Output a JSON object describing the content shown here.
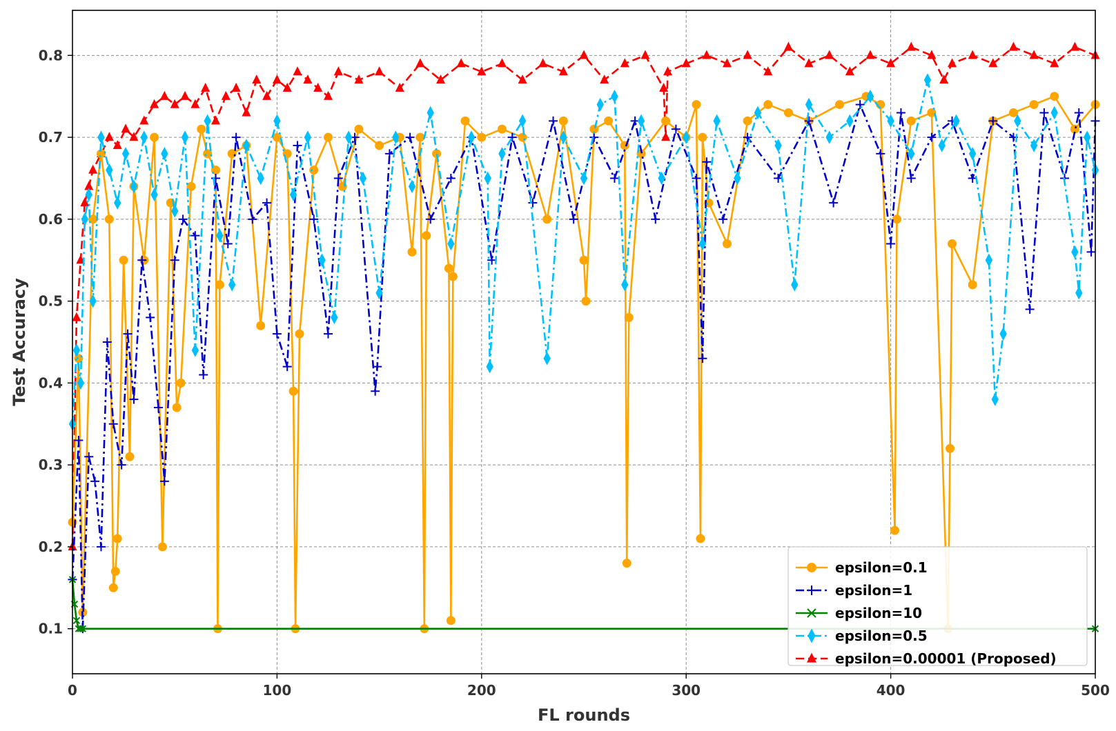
{
  "chart_data": {
    "type": "line",
    "title": "",
    "xlabel": "FL rounds",
    "ylabel": "Test Accuracy",
    "xlim": [
      0,
      500
    ],
    "ylim": [
      0.045,
      0.855
    ],
    "xticks": [
      0,
      100,
      200,
      300,
      400,
      500
    ],
    "yticks": [
      0.1,
      0.2,
      0.3,
      0.4,
      0.5,
      0.6,
      0.7,
      0.8
    ],
    "grid": true,
    "legend_position": "lower-right",
    "series": [
      {
        "name": "epsilon=0.1",
        "color": "#FFA500",
        "marker": "circle",
        "linestyle": "solid",
        "x": [
          0,
          3,
          5,
          10,
          14,
          18,
          20,
          21,
          22,
          25,
          28,
          30,
          35,
          40,
          44,
          48,
          51,
          53,
          58,
          63,
          66,
          70,
          71,
          72,
          78,
          85,
          92,
          100,
          105,
          108,
          109,
          111,
          118,
          125,
          132,
          140,
          150,
          160,
          166,
          170,
          172,
          173,
          178,
          184,
          185,
          186,
          192,
          200,
          210,
          220,
          232,
          240,
          250,
          251,
          255,
          262,
          270,
          271,
          272,
          278,
          290,
          300,
          305,
          307,
          308,
          311,
          320,
          330,
          340,
          350,
          360,
          375,
          388,
          395,
          402,
          403,
          410,
          420,
          428,
          429,
          430,
          440,
          450,
          460,
          470,
          480,
          490,
          500
        ],
        "y": [
          0.23,
          0.43,
          0.12,
          0.6,
          0.68,
          0.6,
          0.15,
          0.17,
          0.21,
          0.55,
          0.31,
          0.64,
          0.55,
          0.7,
          0.2,
          0.62,
          0.37,
          0.4,
          0.64,
          0.71,
          0.68,
          0.66,
          0.1,
          0.52,
          0.68,
          0.69,
          0.47,
          0.7,
          0.68,
          0.39,
          0.1,
          0.46,
          0.66,
          0.7,
          0.64,
          0.71,
          0.69,
          0.7,
          0.56,
          0.7,
          0.1,
          0.58,
          0.68,
          0.54,
          0.11,
          0.53,
          0.72,
          0.7,
          0.71,
          0.7,
          0.6,
          0.72,
          0.55,
          0.5,
          0.71,
          0.72,
          0.69,
          0.18,
          0.48,
          0.68,
          0.72,
          0.7,
          0.74,
          0.21,
          0.7,
          0.62,
          0.57,
          0.72,
          0.74,
          0.73,
          0.72,
          0.74,
          0.75,
          0.74,
          0.22,
          0.6,
          0.72,
          0.73,
          0.1,
          0.32,
          0.57,
          0.52,
          0.72,
          0.73,
          0.74,
          0.75,
          0.71,
          0.74
        ]
      },
      {
        "name": "epsilon=1",
        "color": "#0000CD",
        "marker": "plus",
        "linestyle": "dashdot",
        "x": [
          0,
          3,
          5,
          8,
          11,
          14,
          17,
          20,
          24,
          27,
          30,
          34,
          38,
          42,
          45,
          50,
          54,
          60,
          64,
          70,
          76,
          80,
          88,
          95,
          100,
          105,
          110,
          118,
          125,
          130,
          138,
          148,
          149,
          155,
          165,
          175,
          185,
          195,
          205,
          215,
          225,
          235,
          245,
          255,
          265,
          275,
          285,
          295,
          305,
          308,
          310,
          318,
          330,
          345,
          360,
          372,
          385,
          395,
          400,
          405,
          410,
          420,
          430,
          440,
          450,
          460,
          468,
          475,
          485,
          492,
          498,
          500
        ],
        "y": [
          0.16,
          0.33,
          0.1,
          0.31,
          0.28,
          0.2,
          0.45,
          0.35,
          0.3,
          0.46,
          0.38,
          0.55,
          0.48,
          0.37,
          0.28,
          0.55,
          0.6,
          0.58,
          0.41,
          0.65,
          0.57,
          0.7,
          0.6,
          0.62,
          0.46,
          0.42,
          0.69,
          0.6,
          0.46,
          0.65,
          0.7,
          0.39,
          0.42,
          0.68,
          0.7,
          0.6,
          0.65,
          0.7,
          0.55,
          0.7,
          0.62,
          0.72,
          0.6,
          0.7,
          0.65,
          0.72,
          0.6,
          0.71,
          0.65,
          0.43,
          0.67,
          0.6,
          0.7,
          0.65,
          0.72,
          0.62,
          0.74,
          0.68,
          0.57,
          0.73,
          0.65,
          0.7,
          0.72,
          0.65,
          0.72,
          0.7,
          0.49,
          0.73,
          0.65,
          0.73,
          0.56,
          0.72
        ]
      },
      {
        "name": "epsilon=10",
        "color": "#008000",
        "marker": "x",
        "linestyle": "solid",
        "x": [
          0,
          1,
          2,
          3,
          4,
          5,
          500
        ],
        "y": [
          0.16,
          0.13,
          0.11,
          0.1,
          0.1,
          0.1,
          0.1
        ]
      },
      {
        "name": "epsilon=0.5",
        "color": "#00BFFF",
        "marker": "diamond",
        "linestyle": "dashdot",
        "x": [
          0,
          2,
          4,
          6,
          8,
          10,
          14,
          18,
          22,
          26,
          30,
          35,
          40,
          45,
          50,
          55,
          60,
          66,
          72,
          78,
          85,
          92,
          100,
          108,
          115,
          122,
          128,
          135,
          142,
          150,
          158,
          166,
          175,
          185,
          195,
          203,
          204,
          210,
          220,
          232,
          240,
          250,
          258,
          265,
          270,
          278,
          288,
          300,
          308,
          315,
          325,
          335,
          345,
          353,
          360,
          370,
          380,
          390,
          400,
          410,
          418,
          425,
          432,
          440,
          448,
          451,
          455,
          462,
          470,
          480,
          490,
          492,
          496,
          500
        ],
        "y": [
          0.35,
          0.44,
          0.4,
          0.6,
          0.63,
          0.5,
          0.7,
          0.66,
          0.62,
          0.68,
          0.64,
          0.7,
          0.63,
          0.68,
          0.61,
          0.7,
          0.44,
          0.72,
          0.58,
          0.52,
          0.69,
          0.65,
          0.72,
          0.63,
          0.7,
          0.55,
          0.48,
          0.7,
          0.65,
          0.51,
          0.7,
          0.64,
          0.73,
          0.57,
          0.7,
          0.65,
          0.42,
          0.68,
          0.72,
          0.43,
          0.7,
          0.65,
          0.74,
          0.75,
          0.52,
          0.72,
          0.65,
          0.7,
          0.57,
          0.72,
          0.65,
          0.73,
          0.69,
          0.52,
          0.74,
          0.7,
          0.72,
          0.75,
          0.72,
          0.68,
          0.77,
          0.69,
          0.72,
          0.68,
          0.55,
          0.38,
          0.46,
          0.72,
          0.69,
          0.73,
          0.56,
          0.51,
          0.7,
          0.66
        ]
      },
      {
        "name": "epsilon=0.00001 (Proposed)",
        "color": "#FF0000",
        "marker": "triangle",
        "linestyle": "dashed",
        "x": [
          0,
          2,
          4,
          6,
          8,
          10,
          14,
          18,
          22,
          26,
          30,
          35,
          40,
          45,
          50,
          55,
          60,
          65,
          70,
          75,
          80,
          85,
          90,
          95,
          100,
          105,
          110,
          115,
          120,
          125,
          130,
          140,
          150,
          160,
          170,
          180,
          190,
          200,
          210,
          220,
          230,
          240,
          250,
          260,
          270,
          280,
          289,
          290,
          291,
          300,
          310,
          320,
          330,
          340,
          350,
          360,
          370,
          380,
          390,
          400,
          410,
          420,
          426,
          430,
          440,
          450,
          460,
          470,
          480,
          490,
          500
        ],
        "y": [
          0.2,
          0.48,
          0.55,
          0.62,
          0.64,
          0.66,
          0.68,
          0.7,
          0.69,
          0.71,
          0.7,
          0.72,
          0.74,
          0.75,
          0.74,
          0.75,
          0.74,
          0.76,
          0.72,
          0.75,
          0.76,
          0.73,
          0.77,
          0.75,
          0.77,
          0.76,
          0.78,
          0.77,
          0.76,
          0.75,
          0.78,
          0.77,
          0.78,
          0.76,
          0.79,
          0.77,
          0.79,
          0.78,
          0.79,
          0.77,
          0.79,
          0.78,
          0.8,
          0.77,
          0.79,
          0.8,
          0.76,
          0.7,
          0.78,
          0.79,
          0.8,
          0.79,
          0.8,
          0.78,
          0.81,
          0.79,
          0.8,
          0.78,
          0.8,
          0.79,
          0.81,
          0.8,
          0.77,
          0.79,
          0.8,
          0.79,
          0.81,
          0.8,
          0.79,
          0.81,
          0.8
        ]
      }
    ]
  }
}
